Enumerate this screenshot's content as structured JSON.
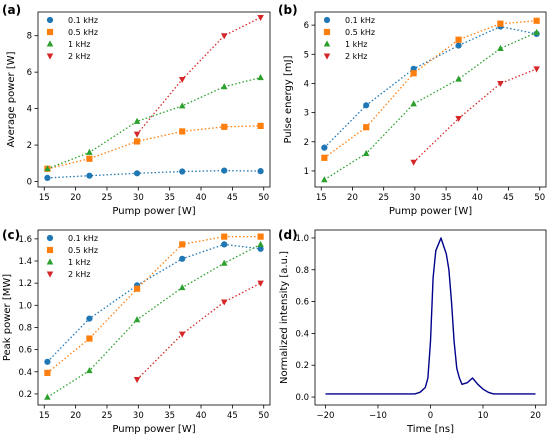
{
  "colors": {
    "0.1 kHz": "#1f77b4",
    "0.5 kHz": "#ff7f0e",
    "1 kHz": "#2ca02c",
    "2 kHz": "#d62728",
    "trace": "#00008b"
  },
  "chart_data": [
    {
      "id": "a",
      "panel_label": "(a)",
      "type": "scatter",
      "connect": "dotted",
      "xlabel": "Pump power [W]",
      "ylabel": "Average power [W]",
      "xlim": [
        14,
        51
      ],
      "ylim": [
        -0.3,
        9.3
      ],
      "xticks": [
        15,
        20,
        25,
        30,
        35,
        40,
        45,
        50
      ],
      "yticks": [
        0,
        2,
        4,
        6,
        8
      ],
      "legend_position": "top-left",
      "series": [
        {
          "name": "0.1 kHz",
          "marker": "circle",
          "x": [
            15.5,
            22.2,
            29.8,
            37,
            43.7,
            49.5
          ],
          "y": [
            0.2,
            0.32,
            0.45,
            0.55,
            0.6,
            0.57
          ]
        },
        {
          "name": "0.5 kHz",
          "marker": "square",
          "x": [
            15.5,
            22.2,
            29.8,
            37,
            43.7,
            49.5
          ],
          "y": [
            0.7,
            1.25,
            2.2,
            2.75,
            3.0,
            3.05
          ]
        },
        {
          "name": "1 kHz",
          "marker": "triangle-up",
          "x": [
            15.5,
            22.2,
            29.8,
            37,
            43.7,
            49.5
          ],
          "y": [
            0.7,
            1.6,
            3.3,
            4.15,
            5.2,
            5.7
          ]
        },
        {
          "name": "2 kHz",
          "marker": "triangle-down",
          "x": [
            29.8,
            37,
            43.7,
            49.5
          ],
          "y": [
            2.6,
            5.6,
            8.0,
            9.0
          ]
        }
      ]
    },
    {
      "id": "b",
      "panel_label": "(b)",
      "type": "scatter",
      "connect": "dotted",
      "xlabel": "Pump power [W]",
      "ylabel": "Pulse energy [mJ]",
      "xlim": [
        14,
        51
      ],
      "ylim": [
        0.45,
        6.45
      ],
      "xticks": [
        15,
        20,
        25,
        30,
        35,
        40,
        45,
        50
      ],
      "yticks": [
        1,
        2,
        3,
        4,
        5,
        6
      ],
      "legend_position": "top-left",
      "series": [
        {
          "name": "0.1 kHz",
          "marker": "circle",
          "x": [
            15.5,
            22.2,
            29.8,
            37,
            43.7,
            49.5
          ],
          "y": [
            1.8,
            3.25,
            4.5,
            5.3,
            5.95,
            5.7
          ]
        },
        {
          "name": "0.5 kHz",
          "marker": "square",
          "x": [
            15.5,
            22.2,
            29.8,
            37,
            43.7,
            49.5
          ],
          "y": [
            1.45,
            2.5,
            4.35,
            5.5,
            6.05,
            6.15
          ]
        },
        {
          "name": "1 kHz",
          "marker": "triangle-up",
          "x": [
            15.5,
            22.2,
            29.8,
            37,
            43.7,
            49.5
          ],
          "y": [
            0.7,
            1.6,
            3.3,
            4.15,
            5.2,
            5.75
          ]
        },
        {
          "name": "2 kHz",
          "marker": "triangle-down",
          "x": [
            29.8,
            37,
            43.7,
            49.5
          ],
          "y": [
            1.3,
            2.8,
            4.0,
            4.5
          ]
        }
      ]
    },
    {
      "id": "c",
      "panel_label": "(c)",
      "type": "scatter",
      "connect": "dotted",
      "xlabel": "Pump power [W]",
      "ylabel": "Peak power [MW]",
      "xlim": [
        14,
        51
      ],
      "ylim": [
        0.1,
        1.68
      ],
      "xticks": [
        15,
        20,
        25,
        30,
        35,
        40,
        45,
        50
      ],
      "yticks": [
        0.2,
        0.4,
        0.6,
        0.8,
        1.0,
        1.2,
        1.4,
        1.6
      ],
      "ytick_labels": [
        "0.2",
        "0.4",
        "0.6",
        "0.8",
        "1.0",
        "1.2",
        "1.4",
        "1.6"
      ],
      "legend_position": "top-left",
      "series": [
        {
          "name": "0.1 kHz",
          "marker": "circle",
          "x": [
            15.5,
            22.2,
            29.8,
            37,
            43.7,
            49.5
          ],
          "y": [
            0.49,
            0.88,
            1.18,
            1.42,
            1.55,
            1.51
          ]
        },
        {
          "name": "0.5 kHz",
          "marker": "square",
          "x": [
            15.5,
            22.2,
            29.8,
            37,
            43.7,
            49.5
          ],
          "y": [
            0.39,
            0.7,
            1.15,
            1.55,
            1.62,
            1.62
          ]
        },
        {
          "name": "1 kHz",
          "marker": "triangle-up",
          "x": [
            15.5,
            22.2,
            29.8,
            37,
            43.7,
            49.5
          ],
          "y": [
            0.17,
            0.41,
            0.87,
            1.16,
            1.38,
            1.55
          ]
        },
        {
          "name": "2 kHz",
          "marker": "triangle-down",
          "x": [
            29.8,
            37,
            43.7,
            49.5
          ],
          "y": [
            0.33,
            0.74,
            1.03,
            1.2
          ]
        }
      ]
    },
    {
      "id": "d",
      "panel_label": "(d)",
      "type": "line",
      "xlabel": "Time [ns]",
      "ylabel": "Normalized intensity [a.u.]",
      "xlim": [
        -22,
        22
      ],
      "ylim": [
        -0.05,
        1.05
      ],
      "xticks": [
        -20,
        -10,
        0,
        10,
        20
      ],
      "xtick_labels": [
        "−20",
        "−10",
        "0",
        "10",
        "20"
      ],
      "yticks": [
        0.0,
        0.2,
        0.4,
        0.6,
        0.8,
        1.0
      ],
      "ytick_labels": [
        "0.0",
        "0.2",
        "0.4",
        "0.6",
        "0.8",
        "1.0"
      ],
      "series": [
        {
          "name": "",
          "x": [
            -20,
            -15,
            -10,
            -5,
            -3,
            -2,
            -1,
            -0.5,
            0,
            0.5,
            1,
            1.5,
            2,
            2.5,
            3,
            3.5,
            4,
            4.5,
            5,
            5.5,
            6,
            7,
            8,
            9,
            10,
            11,
            12,
            14,
            16,
            18,
            20
          ],
          "y": [
            0.02,
            0.02,
            0.02,
            0.02,
            0.02,
            0.03,
            0.06,
            0.12,
            0.35,
            0.75,
            0.92,
            0.96,
            1.0,
            0.95,
            0.9,
            0.8,
            0.6,
            0.35,
            0.18,
            0.12,
            0.08,
            0.09,
            0.12,
            0.08,
            0.05,
            0.03,
            0.02,
            0.02,
            0.02,
            0.02,
            0.02
          ]
        }
      ]
    }
  ]
}
